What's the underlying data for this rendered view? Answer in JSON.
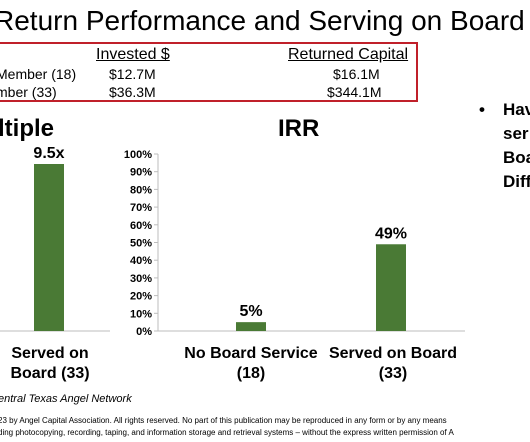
{
  "title": "Return Performance and Serving on Board",
  "table": {
    "headers": [
      "Invested $",
      "Returned Capital"
    ],
    "rows": [
      {
        "label": "Member (18)",
        "invested": "$12.7M",
        "returned": "$16.1M"
      },
      {
        "label": "mber (33)",
        "invested": "$36.3M",
        "returned": "$344.1M"
      }
    ]
  },
  "bullet": {
    "marker": "•",
    "lines": [
      "Hav",
      "ser",
      "Boa",
      "Diff"
    ]
  },
  "left_panel": {
    "title": "ltiple",
    "bar_label": "9.5x",
    "category_lines": [
      "Served on",
      "Board (33)"
    ]
  },
  "chart_data": [
    {
      "type": "bar",
      "title": "ltiple",
      "categories": [
        "Served on Board (33)"
      ],
      "values": [
        9.5
      ],
      "data_labels": [
        "9.5x"
      ],
      "bar_color": "#4a7a35"
    },
    {
      "type": "bar",
      "title": "IRR",
      "categories": [
        "No Board Service (18)",
        "Served on Board (33)"
      ],
      "category_lines": [
        [
          "No Board Service",
          "(18)"
        ],
        [
          "Served on Board",
          "(33)"
        ]
      ],
      "values": [
        5,
        49
      ],
      "data_labels": [
        "5%",
        "49%"
      ],
      "ylim": [
        0,
        100
      ],
      "yticks": [
        "0%",
        "10%",
        "20%",
        "30%",
        "40%",
        "50%",
        "60%",
        "70%",
        "80%",
        "90%",
        "100%"
      ],
      "grid": false,
      "bar_color": "#4a7a35"
    }
  ],
  "source": "entral Texas Angel Network",
  "copyright": [
    "23 by Angel Capital Association.  All rights reserved.  No part of this publication may be reproduced in any form or by any means",
    "ding photocopying, recording, taping, and information storage and retrieval systems – without the express written permission of A"
  ]
}
